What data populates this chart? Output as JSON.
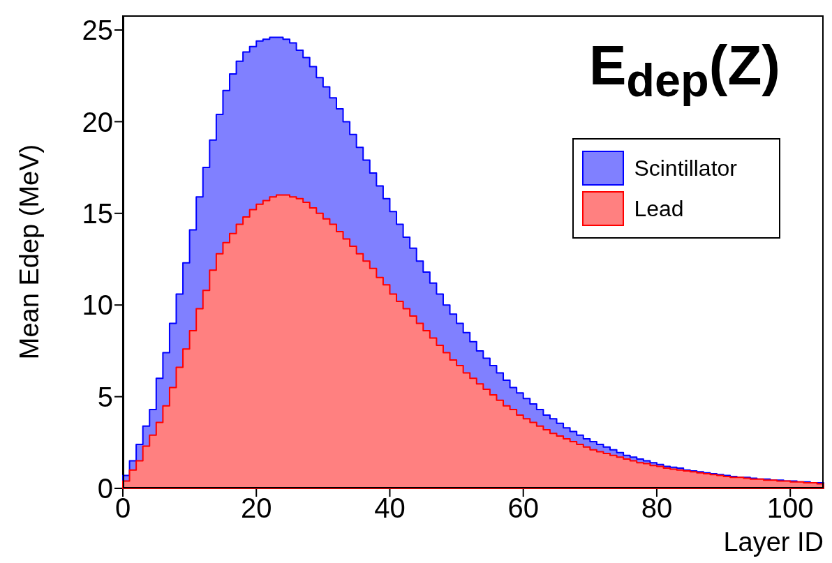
{
  "chart_data": {
    "type": "histogram",
    "title": "E$_{dep}$(Z)",
    "xlabel": "Layer ID",
    "ylabel": "Mean Edep (MeV)",
    "bins": [
      0,
      1,
      2,
      3,
      4,
      5,
      6,
      7,
      8,
      9,
      10,
      11,
      12,
      13,
      14,
      15,
      16,
      17,
      18,
      19,
      20,
      21,
      22,
      23,
      24,
      25,
      26,
      27,
      28,
      29,
      30,
      31,
      32,
      33,
      34,
      35,
      36,
      37,
      38,
      39,
      40,
      41,
      42,
      43,
      44,
      45,
      46,
      47,
      48,
      49,
      50,
      51,
      52,
      53,
      54,
      55,
      56,
      57,
      58,
      59,
      60,
      61,
      62,
      63,
      64,
      65,
      66,
      67,
      68,
      69,
      70,
      71,
      72,
      73,
      74,
      75,
      76,
      77,
      78,
      79,
      80,
      81,
      82,
      83,
      84,
      85,
      86,
      87,
      88,
      89,
      90,
      91,
      92,
      93,
      94,
      95,
      96,
      97,
      98,
      99,
      100,
      101,
      102,
      103,
      104,
      105
    ],
    "series": [
      {
        "name": "Scintillator",
        "color": "#8080ff",
        "values": [
          0.7,
          1.5,
          2.4,
          3.4,
          4.3,
          6.0,
          7.4,
          9.0,
          10.6,
          12.3,
          14.1,
          15.9,
          17.5,
          19.0,
          20.4,
          21.7,
          22.6,
          23.3,
          23.8,
          24.1,
          24.4,
          24.5,
          24.6,
          24.6,
          24.5,
          24.3,
          23.9,
          23.5,
          23.0,
          22.4,
          21.9,
          21.3,
          20.7,
          20.0,
          19.3,
          18.6,
          17.9,
          17.2,
          16.5,
          15.8,
          15.1,
          14.4,
          13.7,
          13.1,
          12.4,
          11.8,
          11.2,
          10.6,
          10.0,
          9.5,
          9.0,
          8.5,
          8.0,
          7.5,
          7.1,
          6.7,
          6.3,
          5.9,
          5.5,
          5.2,
          4.9,
          4.6,
          4.3,
          4.0,
          3.8,
          3.55,
          3.3,
          3.1,
          2.9,
          2.7,
          2.55,
          2.4,
          2.25,
          2.1,
          1.95,
          1.8,
          1.7,
          1.6,
          1.5,
          1.4,
          1.3,
          1.2,
          1.15,
          1.1,
          1.0,
          0.95,
          0.9,
          0.85,
          0.8,
          0.75,
          0.7,
          0.65,
          0.6,
          0.6,
          0.55,
          0.5,
          0.5,
          0.45,
          0.45,
          0.4,
          0.4,
          0.35,
          0.35,
          0.3,
          0.3
        ]
      },
      {
        "name": "Lead",
        "color": "#ff8080",
        "values": [
          0.4,
          1.0,
          1.5,
          2.3,
          2.9,
          3.6,
          4.5,
          5.5,
          6.6,
          7.6,
          8.6,
          9.8,
          10.8,
          11.9,
          12.8,
          13.4,
          13.9,
          14.4,
          14.8,
          15.2,
          15.5,
          15.7,
          15.9,
          16.0,
          16.0,
          15.9,
          15.8,
          15.6,
          15.3,
          15.0,
          14.7,
          14.4,
          14.0,
          13.6,
          13.2,
          12.8,
          12.4,
          12.0,
          11.5,
          11.1,
          10.6,
          10.2,
          9.8,
          9.4,
          9.0,
          8.6,
          8.2,
          7.8,
          7.4,
          7.0,
          6.7,
          6.3,
          6.0,
          5.7,
          5.4,
          5.1,
          4.8,
          4.5,
          4.3,
          4.0,
          3.8,
          3.6,
          3.4,
          3.2,
          3.0,
          2.85,
          2.7,
          2.55,
          2.4,
          2.25,
          2.1,
          2.0,
          1.9,
          1.8,
          1.7,
          1.6,
          1.5,
          1.4,
          1.35,
          1.25,
          1.2,
          1.1,
          1.05,
          1.0,
          0.95,
          0.9,
          0.85,
          0.8,
          0.75,
          0.7,
          0.65,
          0.6,
          0.6,
          0.55,
          0.5,
          0.5,
          0.45,
          0.45,
          0.4,
          0.4,
          0.35,
          0.35,
          0.3,
          0.3,
          0.25
        ]
      }
    ],
    "xlim": [
      0,
      105
    ],
    "xticks": [
      0,
      20,
      40,
      60,
      80,
      100
    ],
    "ylim": [
      0,
      25.8
    ],
    "yticks": [
      0,
      5,
      10,
      15,
      20,
      25
    ],
    "legend": "top right"
  }
}
